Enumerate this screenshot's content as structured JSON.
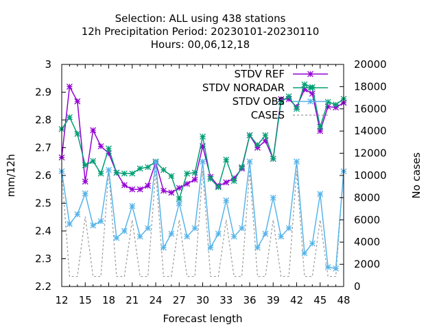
{
  "chart_data": {
    "type": "line",
    "title_lines": [
      "Selection: ALL using   438 stations",
      "12h Precipitation   Period: 20230101-20230110",
      "Hours:  00,06,12,18"
    ],
    "xlabel": "Forecast length",
    "ylabel": "mm/12h",
    "y2label": "No cases",
    "xlim": [
      12,
      48
    ],
    "ylim": [
      2.2,
      3.0
    ],
    "y2lim": [
      0,
      20000
    ],
    "xticks": [
      "12",
      "15",
      "18",
      "21",
      "24",
      "27",
      "30",
      "33",
      "36",
      "39",
      "42",
      "45",
      "48"
    ],
    "yticks": [
      "2.2",
      "2.3",
      "2.4",
      "2.5",
      "2.6",
      "2.7",
      "2.8",
      "2.9",
      "3"
    ],
    "y2ticks": [
      "0",
      "2000",
      "4000",
      "6000",
      "8000",
      "10000",
      "12000",
      "14000",
      "16000",
      "18000",
      "20000"
    ],
    "legend_position": "top-right",
    "x": [
      12,
      13,
      14,
      15,
      16,
      17,
      18,
      19,
      20,
      21,
      22,
      23,
      24,
      25,
      26,
      27,
      28,
      29,
      30,
      31,
      32,
      33,
      34,
      35,
      36,
      37,
      38,
      39,
      40,
      41,
      42,
      43,
      44,
      45,
      46,
      47,
      48
    ],
    "series": [
      {
        "name": "STDV REF",
        "color": "#9400d3",
        "marker": "x-star",
        "values": [
          2.665,
          2.92,
          2.867,
          2.578,
          2.763,
          2.705,
          2.68,
          2.61,
          2.565,
          2.55,
          2.55,
          2.563,
          2.647,
          2.545,
          2.538,
          2.555,
          2.57,
          2.585,
          2.705,
          2.595,
          2.562,
          2.575,
          2.59,
          2.625,
          2.745,
          2.7,
          2.725,
          2.66,
          2.875,
          2.875,
          2.847,
          2.91,
          2.895,
          2.76,
          2.848,
          2.845,
          2.862
        ]
      },
      {
        "name": "STDV NORADAR",
        "color": "#009e73",
        "marker": "x-star",
        "values": [
          2.767,
          2.81,
          2.75,
          2.637,
          2.652,
          2.607,
          2.697,
          2.61,
          2.607,
          2.607,
          2.625,
          2.63,
          2.65,
          2.62,
          2.598,
          2.515,
          2.607,
          2.61,
          2.74,
          2.588,
          2.558,
          2.657,
          2.58,
          2.63,
          2.745,
          2.71,
          2.745,
          2.66,
          2.865,
          2.885,
          2.84,
          2.928,
          2.918,
          2.775,
          2.865,
          2.855,
          2.876
        ]
      },
      {
        "name": "STDV OBS",
        "color": "#56b4e9",
        "marker": "x-star",
        "values": [
          2.615,
          2.425,
          2.46,
          2.535,
          2.42,
          2.435,
          2.62,
          2.375,
          2.4,
          2.49,
          2.38,
          2.41,
          2.648,
          2.34,
          2.39,
          2.5,
          2.38,
          2.41,
          2.65,
          2.34,
          2.39,
          2.51,
          2.38,
          2.41,
          2.65,
          2.34,
          2.39,
          2.52,
          2.38,
          2.41,
          2.65,
          2.32,
          2.355,
          2.533,
          2.27,
          2.265,
          2.615
        ]
      },
      {
        "name": "CASES",
        "color": "#999999",
        "marker": "none",
        "axis": "y2",
        "values": [
          10300,
          900,
          900,
          6300,
          900,
          900,
          10400,
          900,
          900,
          6000,
          900,
          900,
          10400,
          900,
          900,
          6000,
          900,
          900,
          10400,
          900,
          900,
          6000,
          900,
          900,
          10500,
          900,
          900,
          6000,
          900,
          900,
          10400,
          900,
          900,
          6000,
          900,
          900,
          10500
        ]
      }
    ]
  }
}
